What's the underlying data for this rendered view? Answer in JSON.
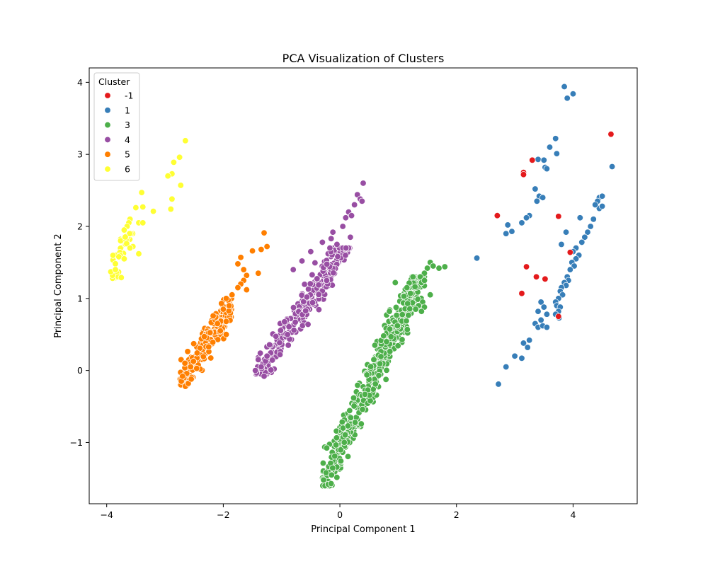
{
  "chart_data": {
    "type": "scatter",
    "title": "PCA Visualization of Clusters",
    "xlabel": "Principal Component 1",
    "ylabel": "Principal Component 2",
    "xlim": [
      -4.3,
      5.1
    ],
    "ylim": [
      -1.85,
      4.2
    ],
    "xticks": [
      -4,
      -2,
      0,
      2,
      4
    ],
    "xtick_labels": [
      "−4",
      "−2",
      "0",
      "2",
      "4"
    ],
    "yticks": [
      -1,
      0,
      1,
      2,
      3,
      4
    ],
    "ytick_labels": [
      "−1",
      "0",
      "1",
      "2",
      "3",
      "4"
    ],
    "grid": false,
    "legend": {
      "title": "Cluster",
      "placement": "top-left"
    },
    "series": [
      {
        "name": "-1",
        "color": "#e41a1c",
        "points": [
          [
            2.7,
            2.15
          ],
          [
            3.15,
            2.75
          ],
          [
            3.15,
            2.72
          ],
          [
            3.3,
            2.92
          ],
          [
            3.75,
            2.14
          ],
          [
            3.95,
            1.64
          ],
          [
            3.2,
            1.44
          ],
          [
            3.37,
            1.3
          ],
          [
            3.52,
            1.27
          ],
          [
            3.12,
            1.07
          ],
          [
            3.75,
            0.75
          ],
          [
            4.65,
            3.28
          ]
        ]
      },
      {
        "name": "1",
        "color": "#377eb8",
        "points": [
          [
            3.85,
            3.94
          ],
          [
            4.0,
            3.84
          ],
          [
            3.9,
            3.78
          ],
          [
            3.7,
            3.22
          ],
          [
            3.6,
            3.1
          ],
          [
            3.72,
            3.01
          ],
          [
            3.4,
            2.93
          ],
          [
            3.5,
            2.92
          ],
          [
            3.52,
            2.82
          ],
          [
            3.55,
            2.8
          ],
          [
            3.35,
            2.52
          ],
          [
            3.42,
            2.42
          ],
          [
            3.38,
            2.35
          ],
          [
            3.48,
            2.4
          ],
          [
            4.67,
            2.83
          ],
          [
            4.45,
            2.4
          ],
          [
            4.5,
            2.42
          ],
          [
            4.42,
            2.35
          ],
          [
            4.45,
            2.25
          ],
          [
            4.38,
            2.3
          ],
          [
            4.5,
            2.28
          ],
          [
            4.35,
            2.1
          ],
          [
            4.3,
            2.0
          ],
          [
            4.25,
            1.92
          ],
          [
            4.2,
            1.85
          ],
          [
            4.15,
            1.78
          ],
          [
            4.12,
            2.12
          ],
          [
            4.05,
            1.7
          ],
          [
            4.0,
            1.65
          ],
          [
            4.1,
            1.6
          ],
          [
            4.05,
            1.55
          ],
          [
            3.98,
            1.5
          ],
          [
            4.02,
            1.45
          ],
          [
            3.95,
            1.4
          ],
          [
            3.9,
            1.3
          ],
          [
            3.92,
            1.25
          ],
          [
            3.85,
            1.22
          ],
          [
            3.88,
            1.18
          ],
          [
            3.8,
            1.15
          ],
          [
            3.78,
            1.1
          ],
          [
            3.82,
            1.05
          ],
          [
            3.75,
            1.0
          ],
          [
            3.7,
            0.95
          ],
          [
            3.72,
            0.9
          ],
          [
            3.78,
            0.88
          ],
          [
            3.75,
            0.82
          ],
          [
            3.7,
            0.78
          ],
          [
            3.76,
            0.73
          ],
          [
            3.88,
            1.92
          ],
          [
            3.8,
            1.75
          ],
          [
            3.25,
            2.15
          ],
          [
            3.2,
            2.12
          ],
          [
            3.12,
            2.05
          ],
          [
            2.95,
            1.93
          ],
          [
            2.85,
            1.9
          ],
          [
            2.88,
            2.02
          ],
          [
            3.45,
            0.95
          ],
          [
            3.5,
            0.88
          ],
          [
            3.4,
            0.82
          ],
          [
            3.55,
            0.78
          ],
          [
            3.45,
            0.7
          ],
          [
            3.35,
            0.65
          ],
          [
            3.4,
            0.6
          ],
          [
            3.48,
            0.62
          ],
          [
            3.55,
            0.6
          ],
          [
            3.25,
            0.42
          ],
          [
            3.15,
            0.38
          ],
          [
            3.22,
            0.32
          ],
          [
            3.0,
            0.2
          ],
          [
            3.12,
            0.17
          ],
          [
            2.85,
            0.05
          ],
          [
            2.72,
            -0.19
          ],
          [
            2.35,
            1.56
          ]
        ]
      },
      {
        "name": "3",
        "color": "#4daf4a",
        "generated": true,
        "range": {
          "x": [
            -0.3,
            1.45
          ],
          "y": [
            -1.6,
            1.3
          ]
        },
        "trend": {
          "slope": 1.72,
          "intercept": -1.05,
          "spread": 0.16
        },
        "count": 500,
        "points": [
          [
            1.55,
            1.5
          ],
          [
            1.6,
            1.45
          ],
          [
            1.7,
            1.42
          ],
          [
            1.8,
            1.44
          ],
          [
            1.5,
            1.42
          ],
          [
            1.45,
            1.35
          ],
          [
            1.38,
            1.3
          ],
          [
            1.4,
            1.22
          ],
          [
            1.45,
            1.25
          ],
          [
            1.15,
            1.15
          ],
          [
            0.95,
            1.22
          ],
          [
            1.1,
            1.03
          ],
          [
            1.55,
            1.05
          ],
          [
            1.42,
            0.95
          ],
          [
            1.35,
            0.9
          ],
          [
            1.45,
            0.88
          ],
          [
            1.3,
            0.85
          ],
          [
            1.4,
            0.82
          ],
          [
            0.85,
            0.82
          ],
          [
            0.6,
            0.35
          ],
          [
            0.75,
            0.48
          ],
          [
            0.8,
            0.4
          ],
          [
            -0.2,
            -1.58
          ],
          [
            -0.15,
            -1.57
          ],
          [
            -0.28,
            -1.52
          ]
        ]
      },
      {
        "name": "4",
        "color": "#984ea3",
        "generated": true,
        "range": {
          "x": [
            -1.45,
            0.2
          ],
          "y": [
            -0.05,
            1.7
          ]
        },
        "trend": {
          "slope": 1.2,
          "intercept": 1.62,
          "spread": 0.13
        },
        "count": 260,
        "points": [
          [
            0.4,
            2.6
          ],
          [
            0.3,
            2.44
          ],
          [
            0.35,
            2.38
          ],
          [
            0.38,
            2.35
          ],
          [
            0.25,
            2.3
          ],
          [
            0.15,
            2.2
          ],
          [
            0.1,
            2.12
          ],
          [
            0.2,
            2.15
          ],
          [
            0.05,
            2.0
          ],
          [
            0.18,
            1.85
          ],
          [
            -0.12,
            1.92
          ],
          [
            -0.15,
            1.83
          ],
          [
            -0.05,
            1.75
          ],
          [
            -0.3,
            1.78
          ],
          [
            -0.5,
            1.65
          ],
          [
            -0.65,
            1.52
          ],
          [
            -0.8,
            1.4
          ],
          [
            -1.25,
            0.2
          ],
          [
            -1.35,
            0.05
          ],
          [
            -1.3,
            -0.08
          ],
          [
            -1.45,
            0.0
          ],
          [
            -1.4,
            0.15
          ]
        ]
      },
      {
        "name": "5",
        "color": "#ff7f00",
        "generated": true,
        "range": {
          "x": [
            -2.75,
            -1.85
          ],
          "y": [
            -0.2,
            1.0
          ]
        },
        "trend": {
          "slope": 1.25,
          "intercept": 3.25,
          "spread": 0.12
        },
        "count": 190,
        "points": [
          [
            -1.3,
            1.91
          ],
          [
            -1.25,
            1.72
          ],
          [
            -1.35,
            1.68
          ],
          [
            -1.5,
            1.66
          ],
          [
            -1.7,
            1.57
          ],
          [
            -1.75,
            1.48
          ],
          [
            -1.65,
            1.4
          ],
          [
            -1.4,
            1.35
          ],
          [
            -1.6,
            1.32
          ],
          [
            -1.65,
            1.25
          ],
          [
            -1.7,
            1.2
          ],
          [
            -1.75,
            1.15
          ],
          [
            -1.6,
            1.12
          ],
          [
            -1.85,
            1.05
          ],
          [
            -1.95,
            1.0
          ],
          [
            -1.9,
            0.9
          ],
          [
            -2.0,
            0.85
          ],
          [
            -1.95,
            0.68
          ],
          [
            -2.05,
            0.55
          ],
          [
            -1.95,
            0.5
          ],
          [
            -2.1,
            0.65
          ],
          [
            -2.65,
            -0.22
          ],
          [
            -2.6,
            -0.18
          ],
          [
            -2.72,
            -0.15
          ],
          [
            -2.55,
            -0.12
          ],
          [
            -2.7,
            -0.08
          ]
        ]
      },
      {
        "name": "6",
        "color": "#ffff33",
        "generated": true,
        "range": {
          "x": [
            -3.9,
            -3.55
          ],
          "y": [
            1.28,
            1.9
          ]
        },
        "trend": {
          "slope": 2.3,
          "intercept": 10.3,
          "spread": 0.12
        },
        "count": 60,
        "points": [
          [
            -2.65,
            3.19
          ],
          [
            -2.75,
            2.96
          ],
          [
            -2.85,
            2.89
          ],
          [
            -2.88,
            2.73
          ],
          [
            -2.95,
            2.7
          ],
          [
            -2.73,
            2.57
          ],
          [
            -2.88,
            2.38
          ],
          [
            -2.9,
            2.24
          ],
          [
            -3.4,
            2.47
          ],
          [
            -3.5,
            2.26
          ],
          [
            -3.38,
            2.27
          ],
          [
            -3.2,
            2.21
          ],
          [
            -3.45,
            2.05
          ],
          [
            -3.38,
            2.05
          ],
          [
            -3.6,
            2.1
          ],
          [
            -3.62,
            2.05
          ],
          [
            -3.65,
            2.0
          ],
          [
            -3.7,
            1.95
          ],
          [
            -3.45,
            1.62
          ],
          [
            -3.55,
            1.72
          ],
          [
            -3.6,
            1.7
          ],
          [
            -3.8,
            1.3
          ],
          [
            -3.75,
            1.29
          ],
          [
            -3.9,
            1.32
          ],
          [
            -3.93,
            1.37
          ],
          [
            -3.85,
            1.4
          ],
          [
            -3.7,
            1.55
          ]
        ]
      }
    ]
  }
}
